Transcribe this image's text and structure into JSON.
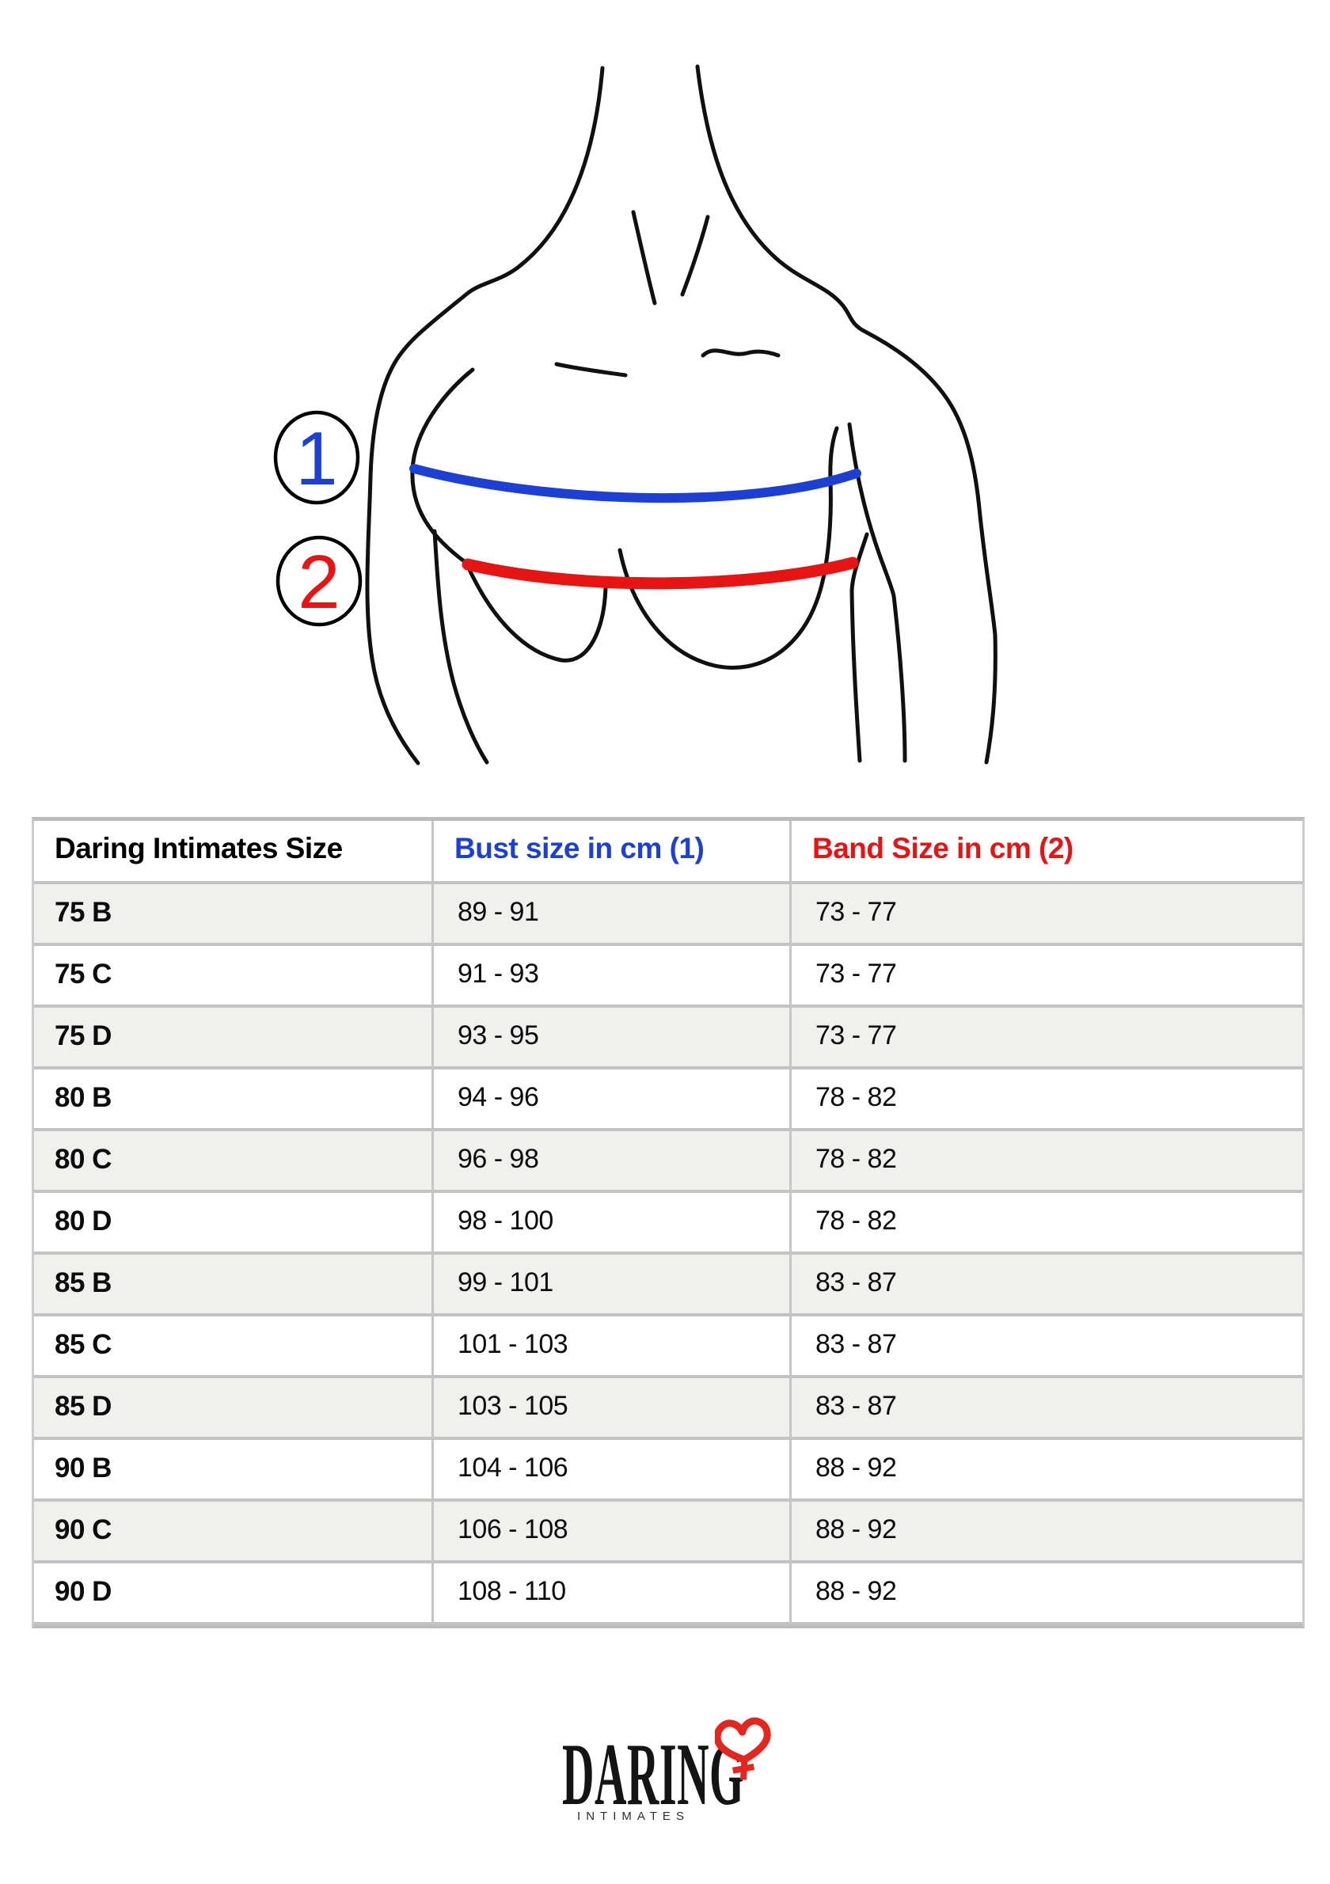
{
  "figure": {
    "bust_marker_label": "1",
    "band_marker_label": "2",
    "bust_line_color": "#1c3fd6",
    "band_line_color": "#e81414",
    "outline_color": "#101010"
  },
  "table": {
    "columns": [
      {
        "label": "Daring Intimates Size",
        "color": "#000000"
      },
      {
        "label": "Bust size in cm (1)",
        "color": "#1c3fd6"
      },
      {
        "label": "Band Size in cm (2)",
        "color": "#e81414"
      }
    ],
    "rows": [
      {
        "size": "75 B",
        "bust": "89 - 91",
        "band": "73 - 77"
      },
      {
        "size": "75 C",
        "bust": "91 - 93",
        "band": "73 - 77"
      },
      {
        "size": "75 D",
        "bust": "93 - 95",
        "band": "73 - 77"
      },
      {
        "size": "80 B",
        "bust": "94 - 96",
        "band": "78 - 82"
      },
      {
        "size": "80 C",
        "bust": "96 - 98",
        "band": "78 - 82"
      },
      {
        "size": "80 D",
        "bust": "98 - 100",
        "band": "78 - 82"
      },
      {
        "size": "85 B",
        "bust": "99 - 101",
        "band": "83 - 87"
      },
      {
        "size": "85 C",
        "bust": "101 - 103",
        "band": "83 - 87"
      },
      {
        "size": "85 D",
        "bust": "103 - 105",
        "band": "83 - 87"
      },
      {
        "size": "90 B",
        "bust": "104 - 106",
        "band": "88 - 92"
      },
      {
        "size": "90 C",
        "bust": "106 - 108",
        "band": "88 - 92"
      },
      {
        "size": "90 D",
        "bust": "108 - 110",
        "band": "88 - 92"
      }
    ]
  },
  "logo": {
    "brand": "DARING",
    "subtitle": "INTIMATES",
    "heart_color": "#e5261f"
  }
}
